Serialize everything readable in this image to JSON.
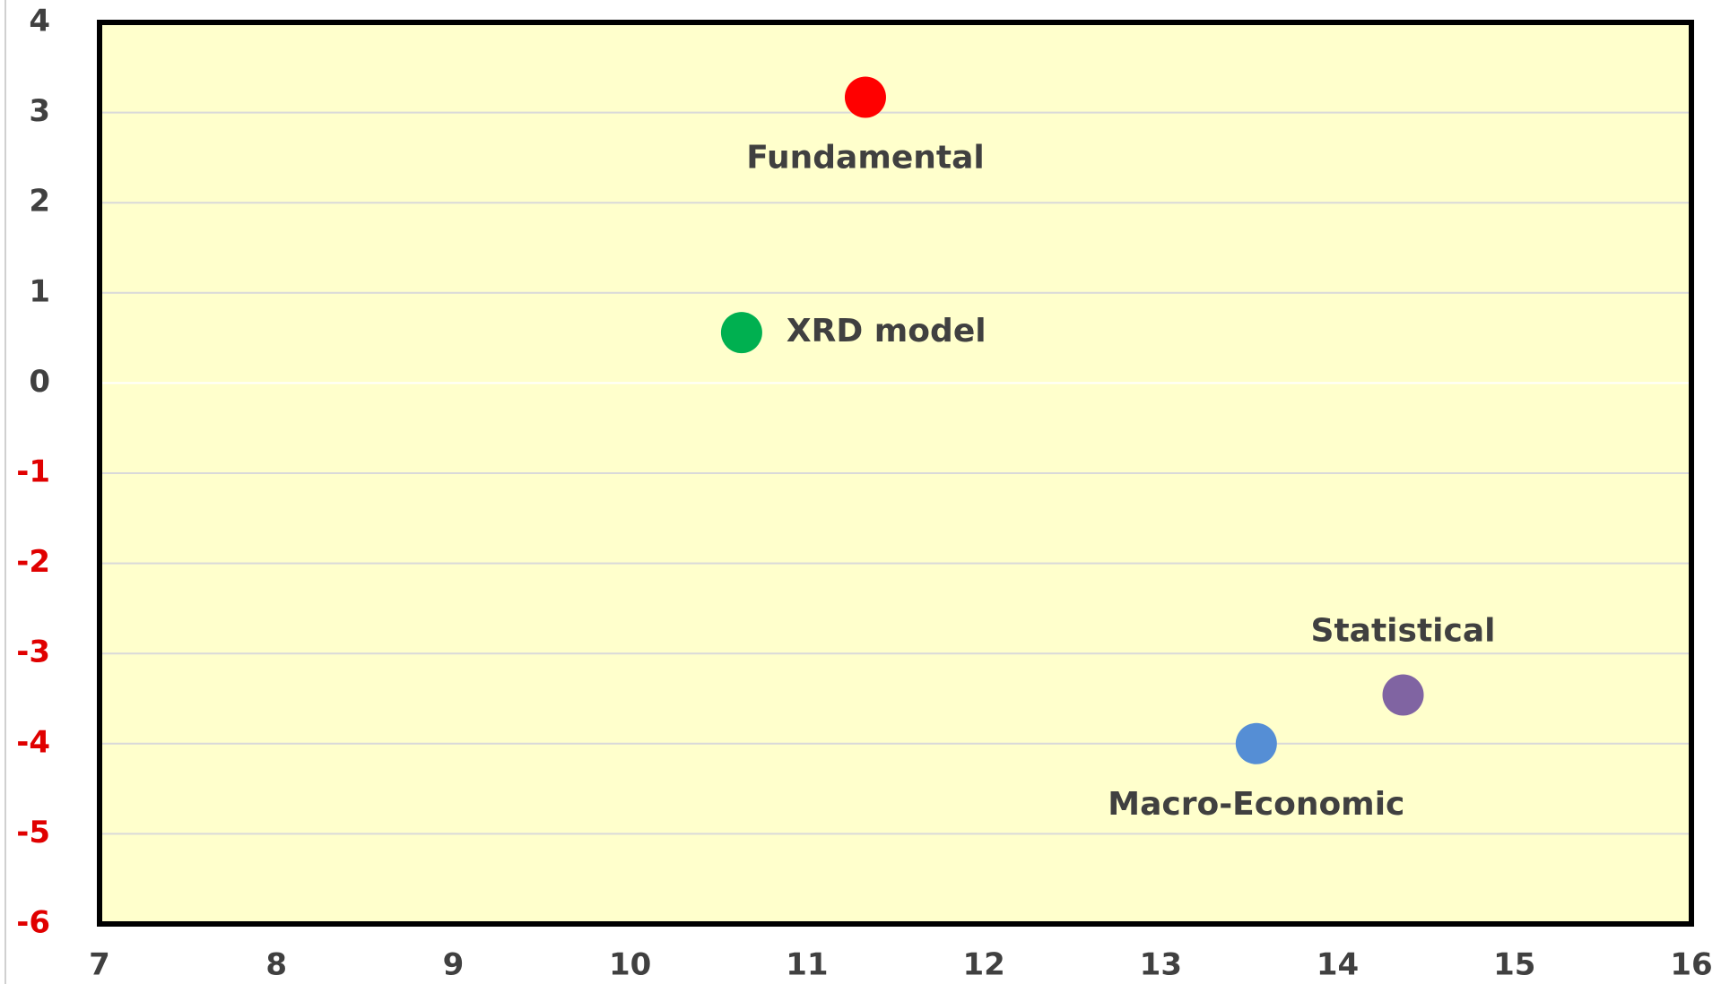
{
  "chart_data": {
    "type": "scatter",
    "series": [
      {
        "name": "Fundamental",
        "color": "#ff0000",
        "x": [
          11.33
        ],
        "values": [
          3.17
        ]
      },
      {
        "name": "XRD model",
        "color": "#00b050",
        "x": [
          10.63
        ],
        "values": [
          0.56
        ]
      },
      {
        "name": "Statistical",
        "color": "#8064a2",
        "x": [
          14.37
        ],
        "values": [
          -3.46
        ]
      },
      {
        "name": "Macro-Economic",
        "color": "#558ed5",
        "x": [
          13.54
        ],
        "values": [
          -4.0
        ]
      }
    ],
    "xlim": [
      7,
      16
    ],
    "xticks": [
      7,
      8,
      9,
      10,
      11,
      12,
      13,
      14,
      15,
      16
    ],
    "ylim": [
      -6,
      4
    ],
    "yticks": [
      -6,
      -5,
      -4,
      -3,
      -2,
      -1,
      0,
      1,
      2,
      3,
      4
    ],
    "grid": true,
    "plot_background": "#ffffcc",
    "negative_tick_color": "#e00000"
  }
}
